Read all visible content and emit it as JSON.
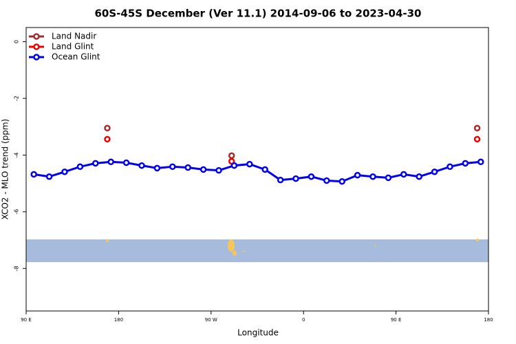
{
  "chart_data": {
    "type": "line",
    "title": "60S-45S December (Ver 11.1)   2014-09-06 to 2023-04-30",
    "xlabel": "Longitude",
    "ylabel": "XCO2 - MLO trend (ppm)",
    "xlim": [
      90,
      540
    ],
    "ylim": [
      -9.5,
      0.5
    ],
    "xticks": [
      {
        "value": 90,
        "label": "90 E"
      },
      {
        "value": 180,
        "label": "180"
      },
      {
        "value": 270,
        "label": "90 W"
      },
      {
        "value": 360,
        "label": "0"
      },
      {
        "value": 450,
        "label": "90 E"
      },
      {
        "value": 540,
        "label": "180"
      }
    ],
    "yticks": [
      0,
      -2,
      -4,
      -6,
      -8
    ],
    "legend": "top-left",
    "series": [
      {
        "name": "Land Nadir",
        "color": "#a52a2a",
        "x": [
          169,
          290,
          529
        ],
        "values": [
          -3.05,
          -4.02,
          -3.05
        ]
      },
      {
        "name": "Land Glint",
        "color": "#ee0000",
        "x": [
          169,
          290,
          529
        ],
        "values": [
          -3.44,
          -4.22,
          -3.44
        ]
      },
      {
        "name": "Ocean Glint",
        "color": "#0000ee",
        "x": [
          97.5,
          112.5,
          127.5,
          142.5,
          157.5,
          172.5,
          187.5,
          202.5,
          217.5,
          232.5,
          247.5,
          262.5,
          277.5,
          292.5,
          307.5,
          322.5,
          337.5,
          352.5,
          367.5,
          382.5,
          397.5,
          412.5,
          427.5,
          442.5,
          457.5,
          472.5,
          487.5,
          502.5,
          517.5,
          532.5
        ],
        "values": [
          -4.68,
          -4.76,
          -4.59,
          -4.41,
          -4.29,
          -4.24,
          -4.27,
          -4.37,
          -4.46,
          -4.41,
          -4.44,
          -4.51,
          -4.54,
          -4.37,
          -4.32,
          -4.51,
          -4.88,
          -4.83,
          -4.76,
          -4.9,
          -4.93,
          -4.71,
          -4.76,
          -4.8,
          -4.68,
          -4.76,
          -4.59,
          -4.41,
          -4.29,
          -4.24
        ]
      }
    ]
  }
}
